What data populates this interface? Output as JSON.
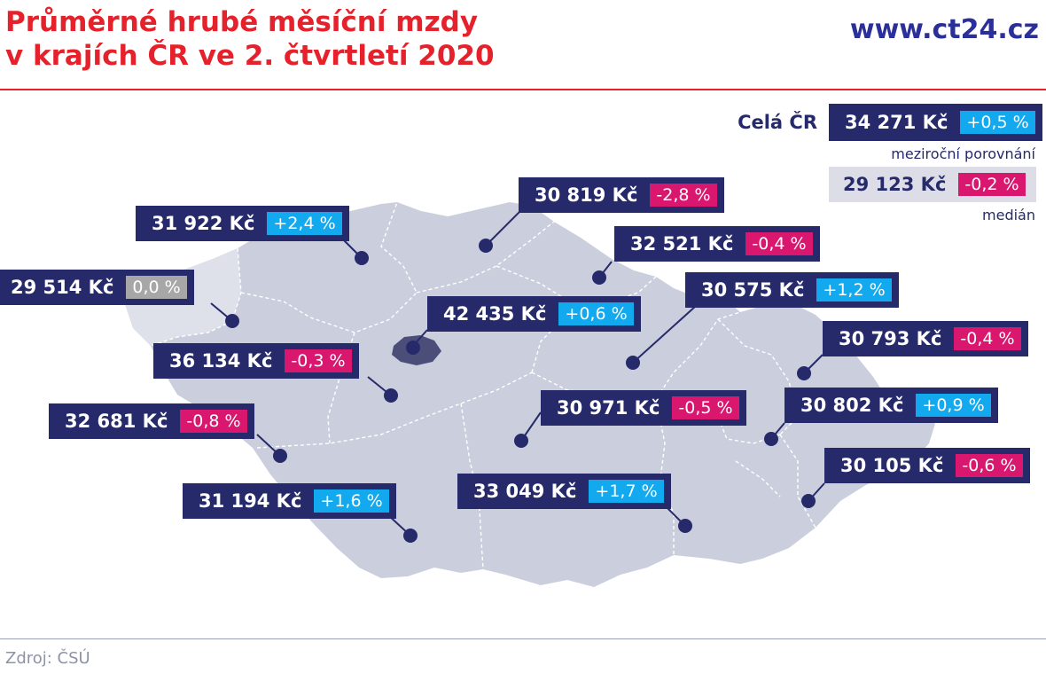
{
  "header": {
    "title_line1": "Průměrné hrubé měsíční mzdy",
    "title_line2": "v krajích ČR ve 2. čtvrtletí 2020",
    "site": "www.ct24.cz"
  },
  "footer": {
    "source": "Zdroj: ČSÚ"
  },
  "legend": {
    "country_label": "Celá ČR",
    "country_value": "34 271 Kč",
    "country_change": "+0,5 %",
    "yoy_note": "meziroční porovnání",
    "median_value": "29 123 Kč",
    "median_change": "-0,2 %",
    "median_note": "medián"
  },
  "colors": {
    "title": "#e5222b",
    "brand": "#2b2f9a",
    "label_bg": "#262a6a",
    "positive": "#12a9ef",
    "negative": "#d9176e",
    "zero": "#a7a7a7",
    "map_fill": "#cbcedd",
    "prague_fill": "#4a4e79"
  },
  "regions": [
    {
      "value": "31 922 Kč",
      "change": "+2,4 %",
      "kind": "pos"
    },
    {
      "value": "30 819 Kč",
      "change": "-2,8 %",
      "kind": "neg"
    },
    {
      "value": "32 521 Kč",
      "change": "-0,4 %",
      "kind": "neg"
    },
    {
      "value": "29 514 Kč",
      "change": "0,0 %",
      "kind": "zero"
    },
    {
      "value": "42 435 Kč",
      "change": "+0,6 %",
      "kind": "pos"
    },
    {
      "value": "30 575 Kč",
      "change": "+1,2 %",
      "kind": "pos"
    },
    {
      "value": "36 134 Kč",
      "change": "-0,3 %",
      "kind": "neg"
    },
    {
      "value": "30 793 Kč",
      "change": "-0,4 %",
      "kind": "neg"
    },
    {
      "value": "32 681 Kč",
      "change": "-0,8 %",
      "kind": "neg"
    },
    {
      "value": "30 971 Kč",
      "change": "-0,5 %",
      "kind": "neg"
    },
    {
      "value": "30 802 Kč",
      "change": "+0,9 %",
      "kind": "pos"
    },
    {
      "value": "31 194 Kč",
      "change": "+1,6 %",
      "kind": "pos"
    },
    {
      "value": "33 049 Kč",
      "change": "+1,7 %",
      "kind": "pos"
    },
    {
      "value": "30 105 Kč",
      "change": "-0,6 %",
      "kind": "neg"
    }
  ]
}
